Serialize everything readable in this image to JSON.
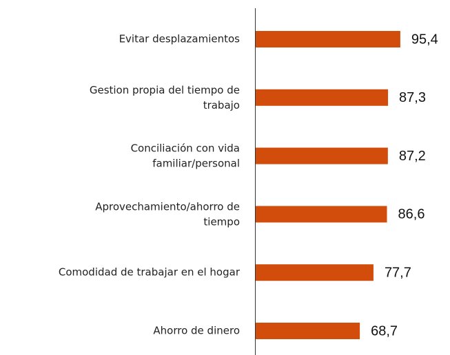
{
  "chart_data": {
    "type": "hbar",
    "categories": [
      "Evitar desplazamientos",
      "Gestion propia del tiempo de\ntrabajo",
      "Conciliación con vida\nfamiliar/personal",
      "Aprovechamiento/ahorro de\ntiempo",
      "Comodidad de trabajar en el hogar",
      "Ahorro de dinero"
    ],
    "values": [
      95.4,
      87.3,
      87.2,
      86.6,
      77.7,
      68.7
    ],
    "value_labels": [
      "95,4",
      "87,3",
      "87,2",
      "86,6",
      "77,7",
      "68,7"
    ],
    "color": "#d24c0c"
  }
}
